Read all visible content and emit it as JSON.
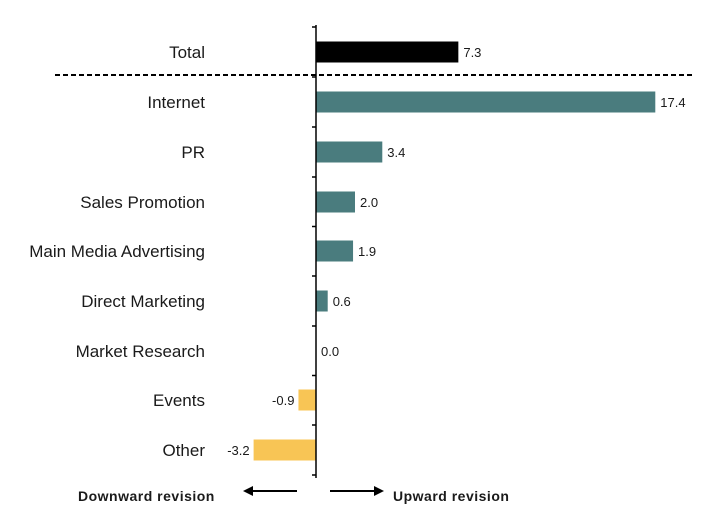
{
  "chart_data": {
    "type": "bar",
    "orientation": "horizontal",
    "categories": [
      "Total",
      "Internet",
      "PR",
      "Sales Promotion",
      "Main Media Advertising",
      "Direct Marketing",
      "Market Research",
      "Events",
      "Other"
    ],
    "values": [
      7.3,
      17.4,
      3.4,
      2.0,
      1.9,
      0.6,
      0.0,
      -0.9,
      -3.2
    ],
    "value_labels": [
      "7.3",
      "17.4",
      "3.4",
      "2.0",
      "1.9",
      "0.6",
      "0.0",
      "-0.9",
      "-3.2"
    ],
    "xlim": [
      -4.0,
      22.0
    ],
    "separator_after": "Total",
    "grid": false,
    "colors": {
      "total": "#000000",
      "positive": "#4a7c7e",
      "negative": "#f8c555",
      "text": "#1a1a1a"
    }
  },
  "footer": {
    "downward_label": "Downward revision",
    "upward_label": "Upward revision"
  }
}
